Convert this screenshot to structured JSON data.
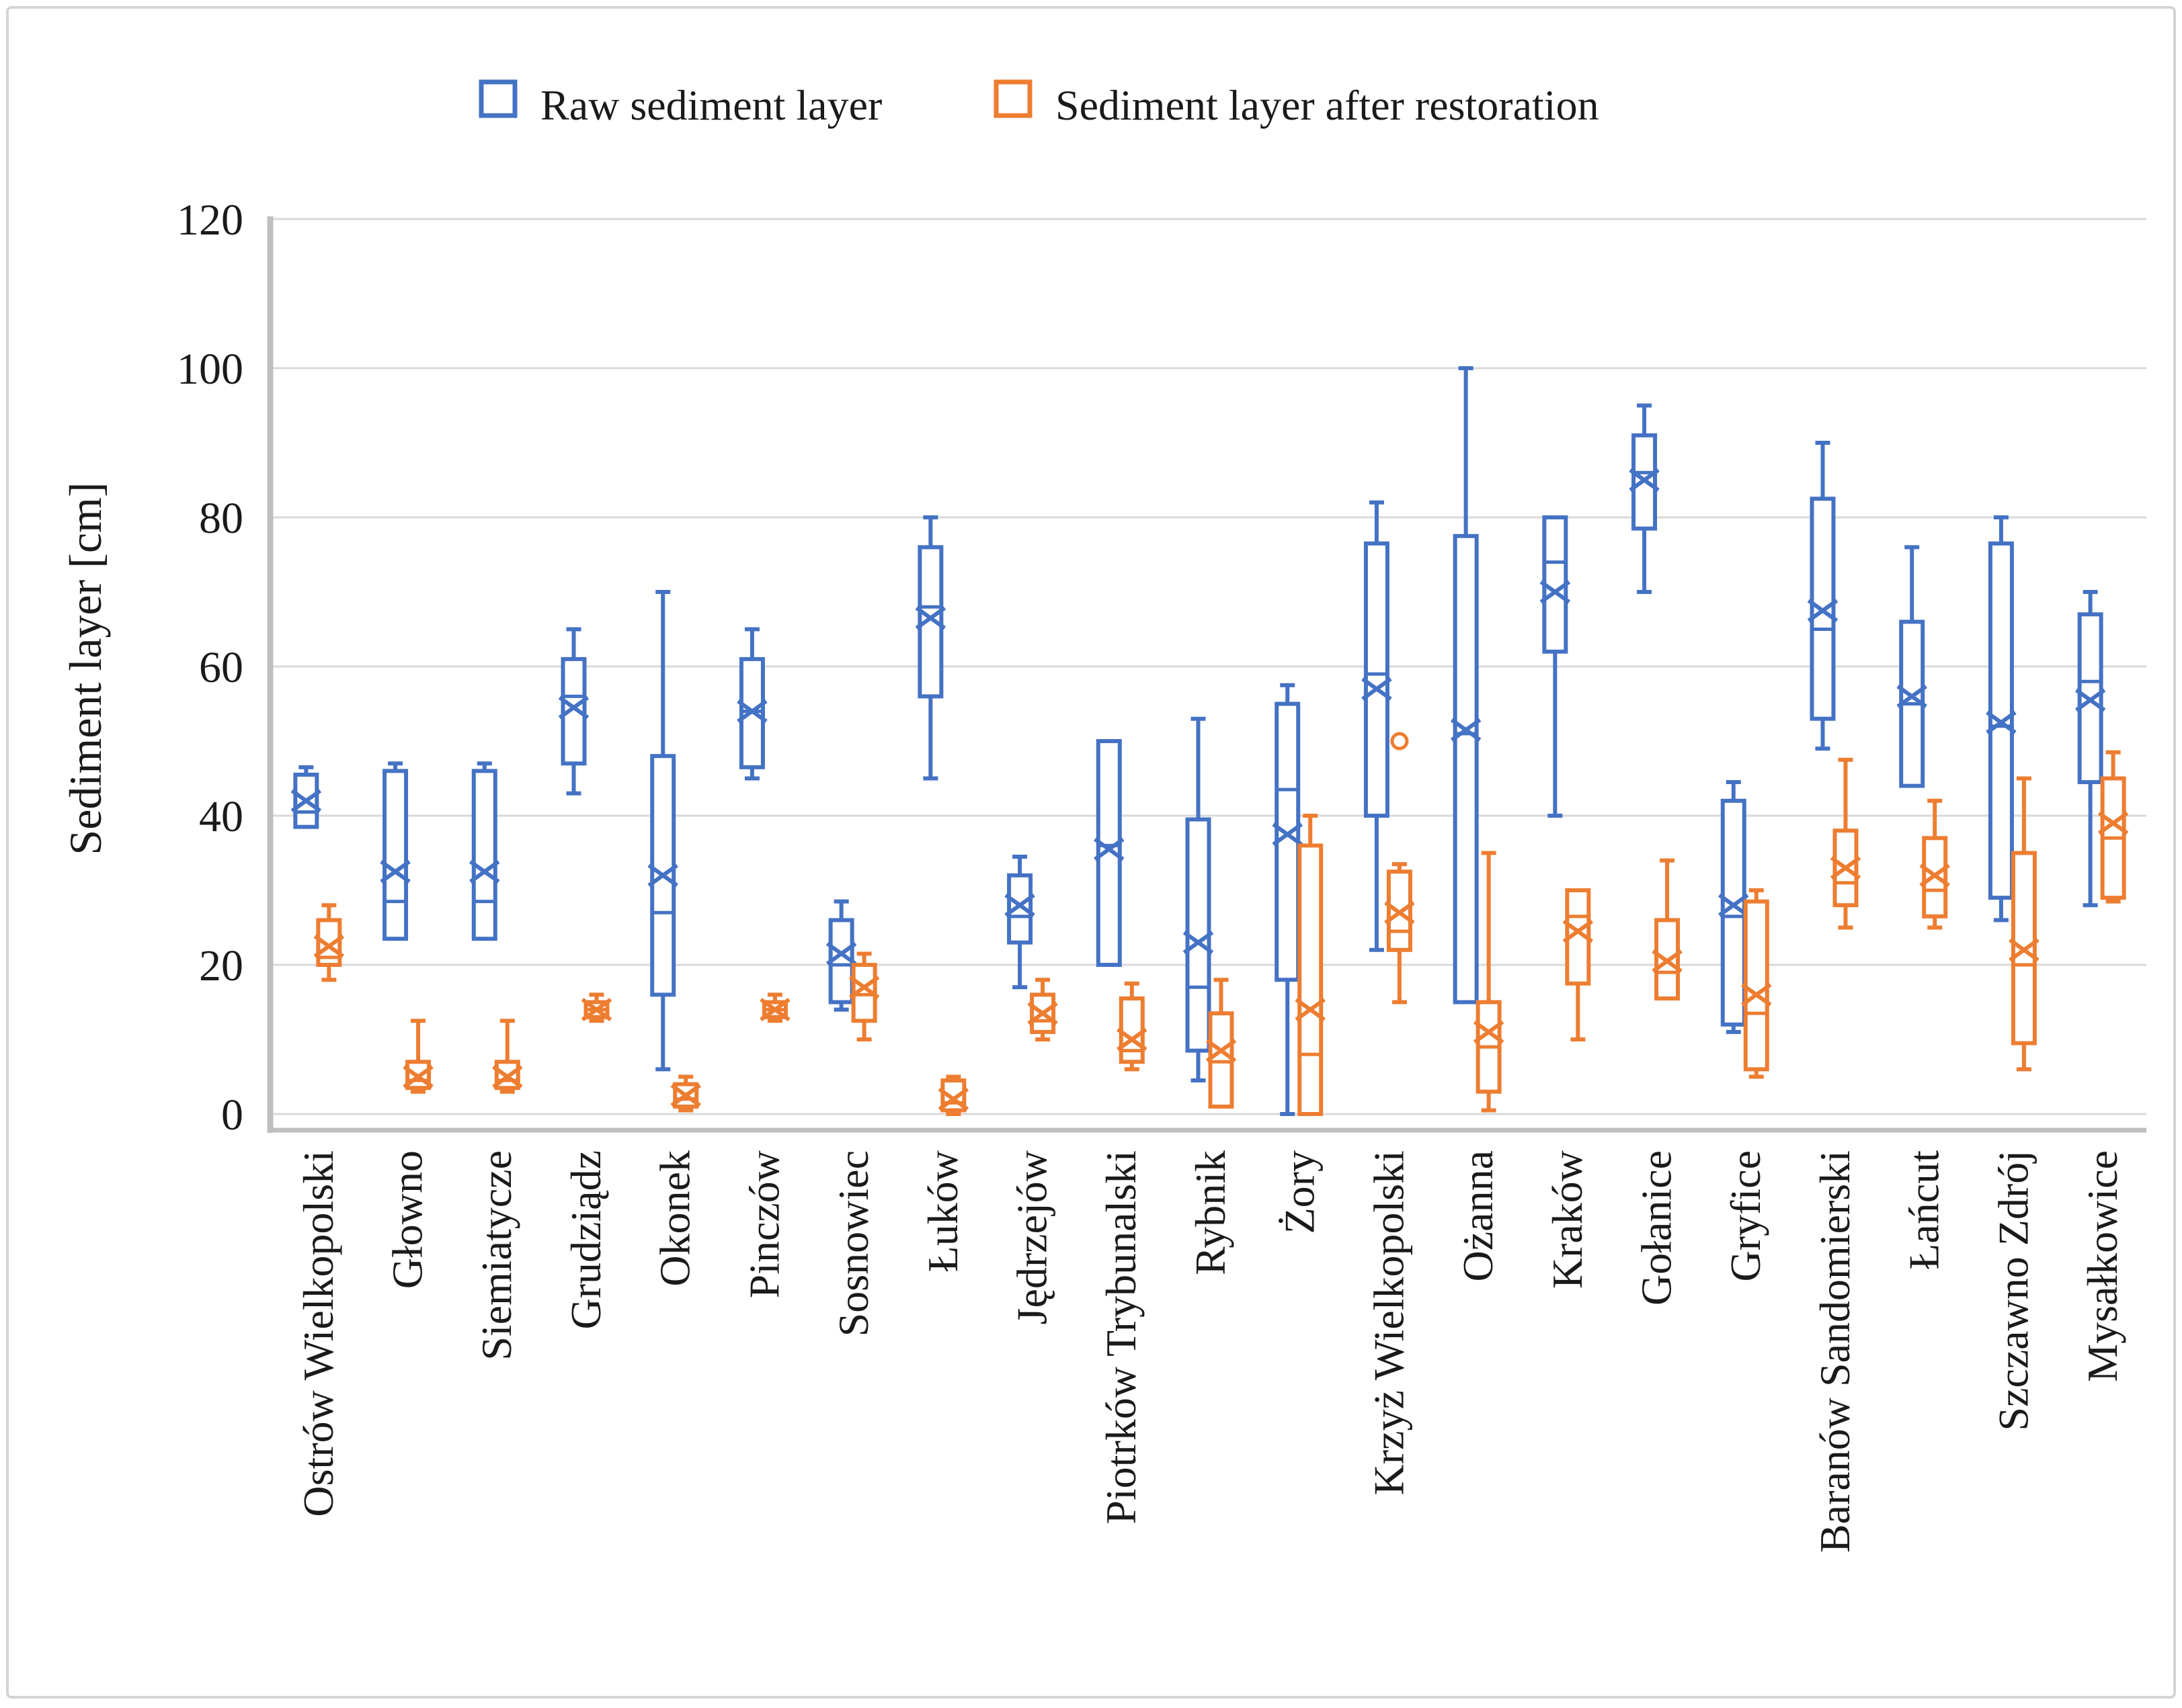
{
  "chart_data": {
    "type": "boxplot",
    "title": "",
    "ylabel": "Sediment layer [cm]",
    "ylim": [
      0,
      120
    ],
    "yticks": [
      0,
      20,
      40,
      60,
      80,
      100,
      120
    ],
    "grid": "horizontal",
    "legend_position": "top",
    "series": [
      {
        "name": "Raw sediment layer",
        "color": "#4472C4"
      },
      {
        "name": "Sediment layer after restoration",
        "color": "#ED7D31"
      }
    ],
    "categories": [
      "Ostrów Wielkopolski",
      "Głowno",
      "Siemiatycze",
      "Grudziądz",
      "Okonek",
      "Pinczów",
      "Sosnowiec",
      "Łuków",
      "Jędrzejów",
      "Piotrków Trybunalski",
      "Rybnik",
      "Żory",
      "Krzyż Wielkopolski",
      "Ożanna",
      "Kraków",
      "Gołanice",
      "Gryfice",
      "Baranów Sandomierski",
      "Łańcut",
      "Szczawno Zdrój",
      "Mysałkowice"
    ],
    "boxes": {
      "raw": [
        {
          "min": 38.5,
          "q1": 38.5,
          "median": 40.5,
          "mean": 42,
          "q3": 45.5,
          "max": 46.5
        },
        {
          "min": 23.5,
          "q1": 23.5,
          "median": 28.5,
          "mean": 32.5,
          "q3": 46,
          "max": 47
        },
        {
          "min": 23.5,
          "q1": 23.5,
          "median": 28.5,
          "mean": 32.5,
          "q3": 46,
          "max": 47
        },
        {
          "min": 43,
          "q1": 47,
          "median": 56,
          "mean": 54.5,
          "q3": 61,
          "max": 65
        },
        {
          "min": 6,
          "q1": 16,
          "median": 27,
          "mean": 32,
          "q3": 48,
          "max": 70
        },
        {
          "min": 45,
          "q1": 46.5,
          "median": 54,
          "mean": 54,
          "q3": 61,
          "max": 65
        },
        {
          "min": 14,
          "q1": 15,
          "median": 20,
          "mean": 21.5,
          "q3": 26,
          "max": 28.5
        },
        {
          "min": 45,
          "q1": 56,
          "median": 68,
          "mean": 66.5,
          "q3": 76,
          "max": 80
        },
        {
          "min": 17,
          "q1": 23,
          "median": 26.5,
          "mean": 28,
          "q3": 32,
          "max": 34.5
        },
        {
          "min": 20,
          "q1": 20,
          "median": 36,
          "mean": 35.5,
          "q3": 50,
          "max": 50
        },
        {
          "min": 4.5,
          "q1": 8.5,
          "median": 17,
          "mean": 23,
          "q3": 39.5,
          "max": 53
        },
        {
          "min": 0,
          "q1": 18,
          "median": 43.5,
          "mean": 37.5,
          "q3": 55,
          "max": 57.5
        },
        {
          "min": 22,
          "q1": 40,
          "median": 59,
          "mean": 57,
          "q3": 76.5,
          "max": 82
        },
        {
          "min": 15,
          "q1": 15,
          "median": 51,
          "mean": 51.5,
          "q3": 77.5,
          "max": 100
        },
        {
          "min": 40,
          "q1": 62,
          "median": 74,
          "mean": 70,
          "q3": 80,
          "max": 80
        },
        {
          "min": 70,
          "q1": 78.5,
          "median": 86,
          "mean": 85,
          "q3": 91,
          "max": 95
        },
        {
          "min": 11,
          "q1": 12,
          "median": 26.5,
          "mean": 28,
          "q3": 42,
          "max": 44.5
        },
        {
          "min": 49,
          "q1": 53,
          "median": 65,
          "mean": 67.5,
          "q3": 82.5,
          "max": 90
        },
        {
          "min": 44,
          "q1": 44,
          "median": 55,
          "mean": 56,
          "q3": 66,
          "max": 76
        },
        {
          "min": 26,
          "q1": 29,
          "median": 52,
          "mean": 52.5,
          "q3": 76.5,
          "max": 80
        },
        {
          "min": 28,
          "q1": 44.5,
          "median": 58,
          "mean": 55.5,
          "q3": 67,
          "max": 70
        }
      ],
      "restored": [
        {
          "min": 18,
          "q1": 20,
          "median": 21,
          "mean": 22.5,
          "q3": 26,
          "max": 28
        },
        {
          "min": 3,
          "q1": 3.5,
          "median": 4.5,
          "mean": 5,
          "q3": 7,
          "max": 12.5
        },
        {
          "min": 3,
          "q1": 3.5,
          "median": 4.5,
          "mean": 5,
          "q3": 7,
          "max": 12.5
        },
        {
          "min": 12.5,
          "q1": 13,
          "median": 14,
          "mean": 14,
          "q3": 15,
          "max": 16
        },
        {
          "min": 0.5,
          "q1": 1,
          "median": 2,
          "mean": 2.5,
          "q3": 4,
          "max": 5
        },
        {
          "min": 12.5,
          "q1": 13,
          "median": 14,
          "mean": 14,
          "q3": 15,
          "max": 16
        },
        {
          "min": 10,
          "q1": 12.5,
          "median": 16,
          "mean": 17,
          "q3": 20,
          "max": 21.5
        },
        {
          "min": 0,
          "q1": 0.5,
          "median": 1.5,
          "mean": 2,
          "q3": 4.5,
          "max": 5
        },
        {
          "min": 10,
          "q1": 11,
          "median": 12.5,
          "mean": 13.5,
          "q3": 16,
          "max": 18
        },
        {
          "min": 6,
          "q1": 7,
          "median": 8.5,
          "mean": 10,
          "q3": 15.5,
          "max": 17.5
        },
        {
          "min": 1,
          "q1": 1,
          "median": 7,
          "mean": 8.5,
          "q3": 13.5,
          "max": 18
        },
        {
          "min": 0,
          "q1": 0,
          "median": 8,
          "mean": 14,
          "q3": 36,
          "max": 40
        },
        {
          "min": 15,
          "q1": 22,
          "median": 24.5,
          "mean": 27,
          "q3": 32.5,
          "max": 33.5,
          "outliers": [
            50
          ]
        },
        {
          "min": 0.5,
          "q1": 3,
          "median": 9,
          "mean": 11,
          "q3": 15,
          "max": 35
        },
        {
          "min": 10,
          "q1": 17.5,
          "median": 26.5,
          "mean": 24.5,
          "q3": 30,
          "max": 30
        },
        {
          "min": 15.5,
          "q1": 15.5,
          "median": 19,
          "mean": 20.5,
          "q3": 26,
          "max": 34
        },
        {
          "min": 5,
          "q1": 6,
          "median": 13.5,
          "mean": 16,
          "q3": 28.5,
          "max": 30
        },
        {
          "min": 25,
          "q1": 28,
          "median": 31,
          "mean": 33,
          "q3": 38,
          "max": 47.5
        },
        {
          "min": 25,
          "q1": 26.5,
          "median": 30,
          "mean": 32,
          "q3": 37,
          "max": 42
        },
        {
          "min": 6,
          "q1": 9.5,
          "median": 20,
          "mean": 22,
          "q3": 35,
          "max": 45
        },
        {
          "min": 28.5,
          "q1": 29,
          "median": 37,
          "mean": 39,
          "q3": 45,
          "max": 48.5
        }
      ]
    },
    "colors": {
      "gridline": "#D9D9D9",
      "axis_line": "#BFBFBF",
      "figure_border": "#D4D4D4",
      "background": "#FFFFFF"
    }
  }
}
